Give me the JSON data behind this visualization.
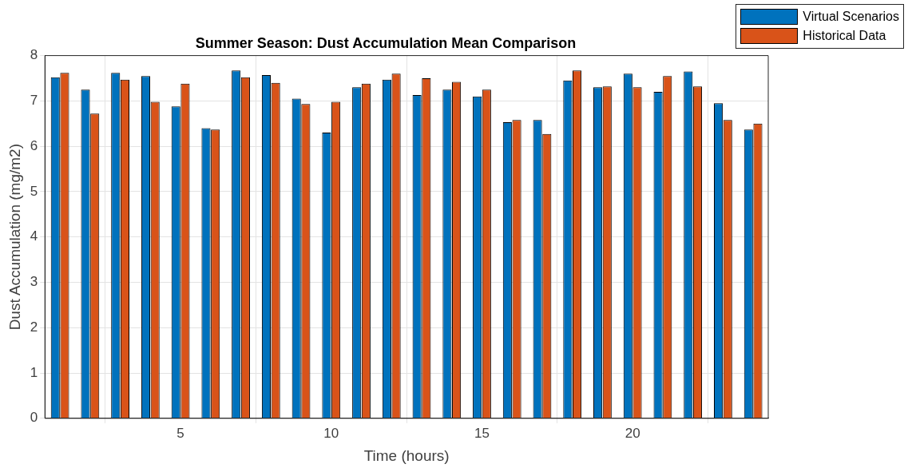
{
  "chart_data": {
    "type": "bar",
    "title": "Summer Season: Dust Accumulation Mean Comparison",
    "xlabel": "Time (hours)",
    "ylabel": "Dust Accumulation (mg/m2)",
    "x": [
      1,
      2,
      3,
      4,
      5,
      6,
      7,
      8,
      9,
      10,
      11,
      12,
      13,
      14,
      15,
      16,
      17,
      18,
      19,
      20,
      21,
      22,
      23,
      24
    ],
    "series": [
      {
        "name": "Virtual Scenarios",
        "color": "#0072bd",
        "values": [
          7.52,
          7.25,
          7.62,
          7.55,
          6.88,
          6.4,
          7.67,
          7.57,
          7.05,
          6.3,
          7.3,
          7.47,
          7.13,
          7.25,
          7.1,
          6.53,
          6.58,
          7.45,
          7.3,
          7.6,
          7.2,
          7.65,
          6.95,
          6.37
        ]
      },
      {
        "name": "Historical Data",
        "color": "#d95319",
        "values": [
          7.62,
          6.72,
          7.47,
          6.98,
          7.38,
          6.37,
          7.52,
          7.4,
          6.93,
          6.98,
          7.38,
          7.6,
          7.5,
          7.42,
          7.25,
          6.58,
          6.27,
          7.67,
          7.32,
          7.3,
          7.55,
          7.32,
          6.58,
          6.5
        ]
      }
    ],
    "xlim": [
      0.5,
      24.5
    ],
    "xticks": [
      5,
      10,
      15,
      20
    ],
    "ylim": [
      0,
      8
    ],
    "yticks": [
      0,
      1,
      2,
      3,
      4,
      5,
      6,
      7,
      8
    ],
    "grid": true,
    "legend": "top right"
  }
}
